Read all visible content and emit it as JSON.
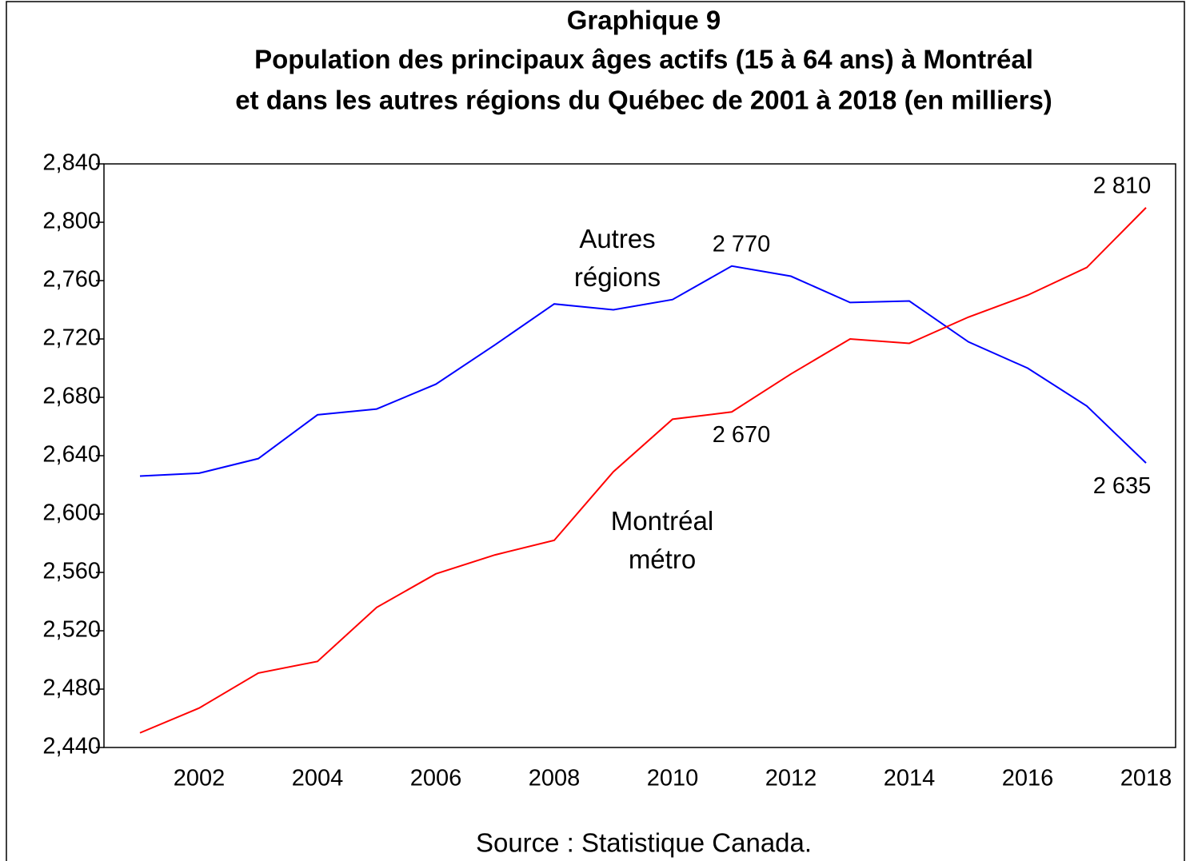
{
  "chart_data": {
    "type": "line",
    "title": "Graphique 9",
    "subtitle": [
      "Population des principaux âges actifs (15 à 64 ans) à Montréal",
      "et dans les autres régions du Québec de 2001 à 2018 (en milliers)"
    ],
    "source": "Source : Statistique Canada.",
    "x": [
      2001,
      2002,
      2003,
      2004,
      2005,
      2006,
      2007,
      2008,
      2009,
      2010,
      2011,
      2012,
      2013,
      2014,
      2015,
      2016,
      2017,
      2018
    ],
    "series": [
      {
        "name": "Autres régions",
        "color": "#0000ff",
        "values": [
          2626,
          2628,
          2638,
          2668,
          2672,
          2689,
          2716,
          2744,
          2740,
          2747,
          2770,
          2763,
          2745,
          2746,
          2718,
          2700,
          2674,
          2635
        ],
        "value_labels": [
          null,
          null,
          null,
          null,
          null,
          null,
          null,
          null,
          null,
          null,
          "2 770",
          null,
          null,
          null,
          null,
          null,
          null,
          "2 635"
        ]
      },
      {
        "name": "Montréal métro",
        "color": "#ff0000",
        "values": [
          2450,
          2467,
          2491,
          2499,
          2536,
          2559,
          2572,
          2582,
          2629,
          2665,
          2670,
          2696,
          2720,
          2717,
          2735,
          2750,
          2769,
          2810
        ],
        "value_labels": [
          null,
          null,
          null,
          null,
          null,
          null,
          null,
          null,
          null,
          null,
          "2 670",
          null,
          null,
          null,
          null,
          null,
          null,
          "2 810"
        ]
      }
    ],
    "xlim": [
      2000.5,
      2018.5
    ],
    "xticks": [
      2002,
      2004,
      2006,
      2008,
      2010,
      2012,
      2014,
      2016,
      2018
    ],
    "ylim": [
      2440,
      2840
    ],
    "yticks": [
      {
        "value": 2440,
        "label": "2,440"
      },
      {
        "value": 2480,
        "label": "2,480"
      },
      {
        "value": 2520,
        "label": "2,520"
      },
      {
        "value": 2560,
        "label": "2,560"
      },
      {
        "value": 2600,
        "label": "2,600"
      },
      {
        "value": 2640,
        "label": "2,640"
      },
      {
        "value": 2680,
        "label": "2,680"
      },
      {
        "value": 2720,
        "label": "2,720"
      },
      {
        "value": 2760,
        "label": "2,760"
      },
      {
        "value": 2800,
        "label": "2,800"
      },
      {
        "value": 2840,
        "label": "2,840"
      }
    ],
    "grid": false
  }
}
